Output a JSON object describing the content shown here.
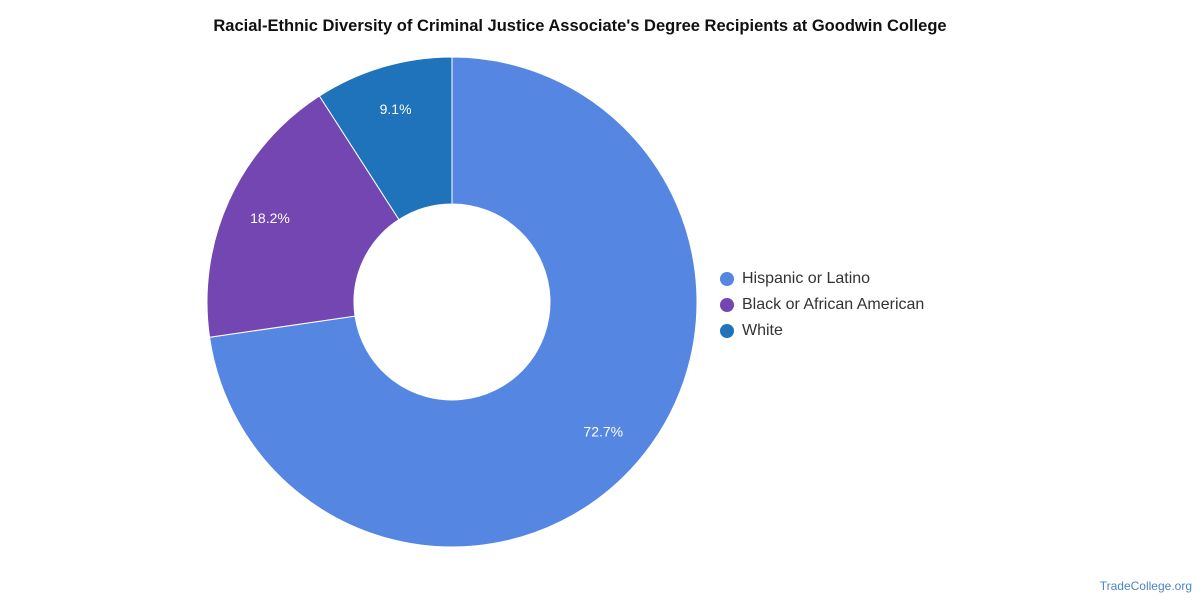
{
  "chart_data": {
    "type": "pie",
    "title": "Racial-Ethnic Diversity of Criminal Justice Associate's Degree Recipients at Goodwin College",
    "donut": true,
    "legend_position": "right",
    "slices": [
      {
        "label": "Hispanic or Latino",
        "value": 72.7,
        "display": "72.7%",
        "color": "#5486e2"
      },
      {
        "label": "Black or African American",
        "value": 18.2,
        "display": "18.2%",
        "color": "#7446b1"
      },
      {
        "label": "White",
        "value": 9.1,
        "display": "9.1%",
        "color": "#1f73bb"
      }
    ]
  },
  "footer": {
    "source": "TradeCollege.org"
  }
}
